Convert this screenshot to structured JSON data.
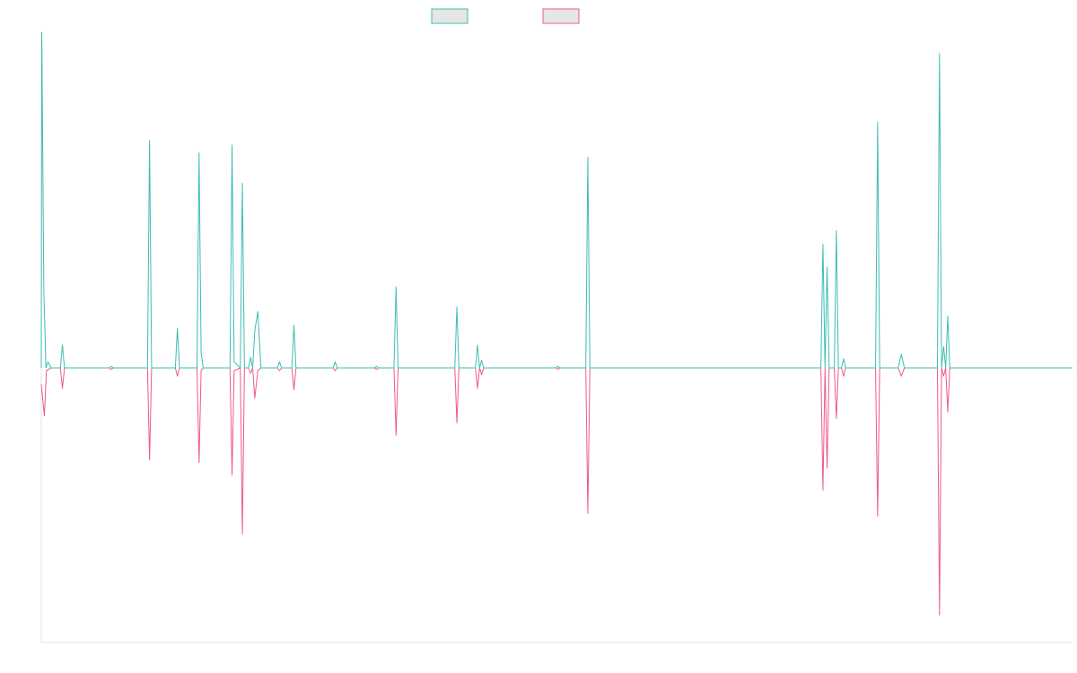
{
  "chart_data": {
    "type": "line",
    "title": "",
    "xlabel": "",
    "ylabel": "",
    "baseline": 0,
    "ylim": [
      -100,
      100
    ],
    "xlim": [
      0,
      100
    ],
    "grid": false,
    "legend_placement": "top-center",
    "colors": {
      "series_a": "#3dbdb3",
      "series_b": "#ee5a87",
      "legend_fill": "#e6e6e6",
      "axis": "#e2e2e2"
    },
    "series": [
      {
        "name": "",
        "color": "#3dbdb3",
        "points": [
          [
            0,
            0
          ],
          [
            0.05,
            110
          ],
          [
            0.25,
            25
          ],
          [
            0.45,
            0
          ],
          [
            0.65,
            2
          ],
          [
            0.95,
            0
          ],
          [
            1.85,
            0
          ],
          [
            2.05,
            7.5
          ],
          [
            2.25,
            0
          ],
          [
            6.6,
            0
          ],
          [
            6.8,
            0.5
          ],
          [
            7.0,
            0
          ],
          [
            10.3,
            0
          ],
          [
            10.5,
            74.5
          ],
          [
            10.7,
            0
          ],
          [
            13.0,
            0
          ],
          [
            13.2,
            13
          ],
          [
            13.4,
            0
          ],
          [
            15.1,
            0
          ],
          [
            15.3,
            70.5
          ],
          [
            15.5,
            5
          ],
          [
            15.7,
            0
          ],
          [
            18.3,
            0
          ],
          [
            18.5,
            73
          ],
          [
            18.7,
            2
          ],
          [
            19.3,
            0
          ],
          [
            19.5,
            60.5
          ],
          [
            19.7,
            0
          ],
          [
            20.1,
            0
          ],
          [
            20.3,
            3.5
          ],
          [
            20.5,
            0
          ],
          [
            20.7,
            12
          ],
          [
            21.0,
            18.5
          ],
          [
            21.3,
            0
          ],
          [
            22.9,
            0
          ],
          [
            23.1,
            2
          ],
          [
            23.3,
            0
          ],
          [
            24.3,
            0
          ],
          [
            24.5,
            14
          ],
          [
            24.7,
            0
          ],
          [
            28.3,
            0
          ],
          [
            28.5,
            2
          ],
          [
            28.7,
            0
          ],
          [
            32.3,
            0
          ],
          [
            32.5,
            0.5
          ],
          [
            32.7,
            0
          ],
          [
            34.2,
            0
          ],
          [
            34.4,
            26.5
          ],
          [
            34.6,
            0
          ],
          [
            40.1,
            0
          ],
          [
            40.3,
            20
          ],
          [
            40.5,
            0
          ],
          [
            42.1,
            0
          ],
          [
            42.3,
            7.5
          ],
          [
            42.5,
            0
          ],
          [
            42.7,
            2.5
          ],
          [
            42.9,
            0
          ],
          [
            49.9,
            0
          ],
          [
            50.1,
            0.5
          ],
          [
            50.3,
            0
          ],
          [
            52.8,
            0
          ],
          [
            53.0,
            69
          ],
          [
            53.2,
            0
          ],
          [
            75.6,
            0
          ],
          [
            75.8,
            40.5
          ],
          [
            76.0,
            0
          ],
          [
            76.2,
            33
          ],
          [
            76.4,
            0
          ],
          [
            76.9,
            0
          ],
          [
            77.1,
            45
          ],
          [
            77.3,
            0
          ],
          [
            77.6,
            0
          ],
          [
            77.8,
            3
          ],
          [
            78.0,
            0
          ],
          [
            80.9,
            0
          ],
          [
            81.1,
            80.5
          ],
          [
            81.3,
            0
          ],
          [
            83.1,
            0
          ],
          [
            83.4,
            4.5
          ],
          [
            83.7,
            0
          ],
          [
            86.9,
            0
          ],
          [
            87.1,
            103
          ],
          [
            87.3,
            0
          ],
          [
            87.5,
            7
          ],
          [
            87.7,
            0
          ],
          [
            87.9,
            17
          ],
          [
            88.1,
            0
          ],
          [
            100,
            0
          ]
        ]
      },
      {
        "name": "",
        "color": "#ee5a87",
        "points": [
          [
            0,
            -6
          ],
          [
            0.3,
            -17.5
          ],
          [
            0.5,
            -1
          ],
          [
            0.7,
            -0.5
          ],
          [
            0.95,
            0
          ],
          [
            1.85,
            0
          ],
          [
            2.05,
            -7.5
          ],
          [
            2.25,
            0
          ],
          [
            6.6,
            0
          ],
          [
            6.8,
            -0.5
          ],
          [
            7.0,
            0
          ],
          [
            10.3,
            0
          ],
          [
            10.5,
            -33.5
          ],
          [
            10.7,
            0
          ],
          [
            13.0,
            0
          ],
          [
            13.2,
            -3
          ],
          [
            13.4,
            0
          ],
          [
            15.1,
            0
          ],
          [
            15.3,
            -34.5
          ],
          [
            15.5,
            -1
          ],
          [
            15.7,
            0
          ],
          [
            18.3,
            0
          ],
          [
            18.5,
            -39
          ],
          [
            18.7,
            -1
          ],
          [
            19.3,
            0
          ],
          [
            19.5,
            -60.5
          ],
          [
            19.7,
            0
          ],
          [
            20.1,
            0
          ],
          [
            20.3,
            -2
          ],
          [
            20.5,
            0
          ],
          [
            20.7,
            -11
          ],
          [
            21.0,
            -1
          ],
          [
            21.3,
            0
          ],
          [
            22.9,
            0
          ],
          [
            23.1,
            -1
          ],
          [
            23.3,
            0
          ],
          [
            24.3,
            0
          ],
          [
            24.5,
            -8
          ],
          [
            24.7,
            0
          ],
          [
            28.3,
            0
          ],
          [
            28.5,
            -1
          ],
          [
            28.7,
            0
          ],
          [
            32.3,
            0
          ],
          [
            32.5,
            -0.5
          ],
          [
            32.7,
            0
          ],
          [
            34.2,
            0
          ],
          [
            34.4,
            -24.5
          ],
          [
            34.6,
            0
          ],
          [
            40.1,
            0
          ],
          [
            40.3,
            -20
          ],
          [
            40.5,
            0
          ],
          [
            42.1,
            0
          ],
          [
            42.3,
            -7.5
          ],
          [
            42.5,
            0
          ],
          [
            42.7,
            -2.5
          ],
          [
            42.9,
            0
          ],
          [
            49.9,
            0
          ],
          [
            50.1,
            -0.5
          ],
          [
            50.3,
            0
          ],
          [
            52.8,
            0
          ],
          [
            53.0,
            -53
          ],
          [
            53.2,
            0
          ],
          [
            75.6,
            0
          ],
          [
            75.8,
            -44.5
          ],
          [
            76.0,
            0
          ],
          [
            76.2,
            -36.5
          ],
          [
            76.4,
            0
          ],
          [
            76.9,
            0
          ],
          [
            77.1,
            -18.5
          ],
          [
            77.3,
            0
          ],
          [
            77.6,
            0
          ],
          [
            77.8,
            -3
          ],
          [
            78.0,
            0
          ],
          [
            80.9,
            0
          ],
          [
            81.1,
            -54
          ],
          [
            81.3,
            0
          ],
          [
            83.1,
            0
          ],
          [
            83.4,
            -3
          ],
          [
            83.7,
            0
          ],
          [
            86.9,
            0
          ],
          [
            87.1,
            -90
          ],
          [
            87.3,
            0
          ],
          [
            87.5,
            -3
          ],
          [
            87.7,
            0
          ],
          [
            87.9,
            -16
          ],
          [
            88.1,
            0
          ],
          [
            100,
            0
          ]
        ]
      }
    ]
  }
}
